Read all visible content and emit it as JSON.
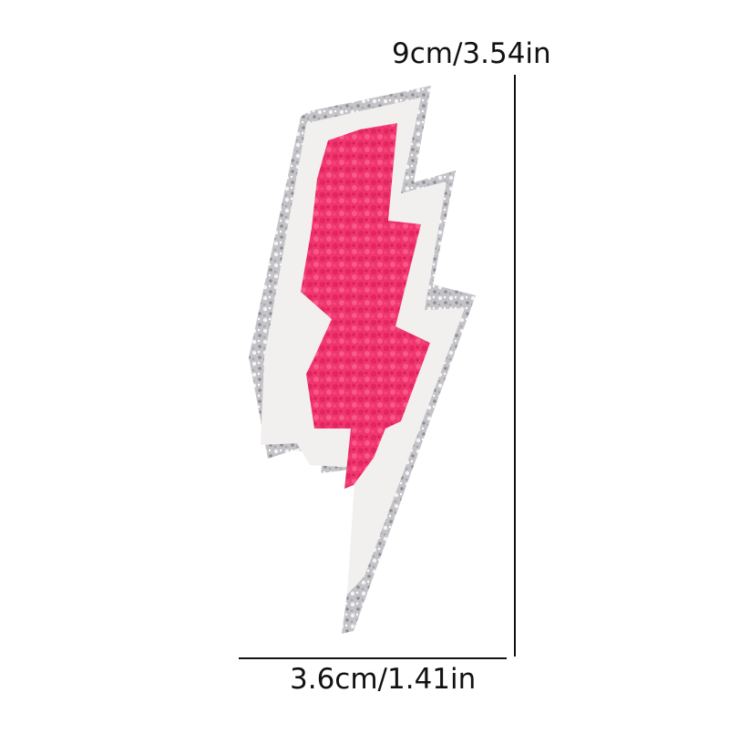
{
  "measurements": {
    "height_label": "9cm/3.54in",
    "width_label": "3.6cm/1.41in"
  },
  "colors": {
    "background": "#ffffff",
    "glitter_border": "#c4c4c8",
    "felt": "#f2f0ef",
    "chenille_pink": "#f0356f",
    "measure_line": "#111111"
  },
  "product": {
    "icon": "lightning-bolt-icon"
  }
}
